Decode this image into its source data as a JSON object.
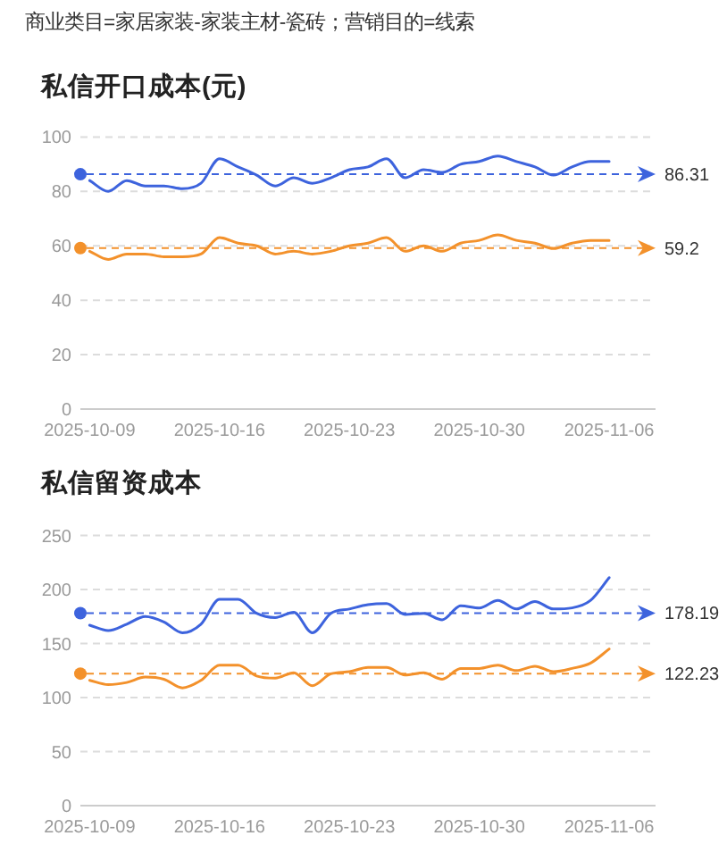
{
  "chart_data": [
    {
      "type": "line",
      "title": "私信开口成本(元)",
      "annotations": [
        "商业类目=家居家装-家装主材-瓷砖；营销目的=线索"
      ],
      "categories": [
        "2025-10-09",
        null,
        null,
        null,
        null,
        null,
        null,
        "2025-10-16",
        null,
        null,
        null,
        null,
        null,
        null,
        "2025-10-23",
        null,
        null,
        null,
        null,
        null,
        null,
        "2025-10-30",
        null,
        null,
        null,
        null,
        null,
        null,
        "2025-11-06",
        null,
        null
      ],
      "series": [
        {
          "color": "#3d63dd",
          "values": [
            84,
            80,
            84,
            82,
            82,
            81,
            83,
            92,
            89,
            86,
            82,
            85,
            83,
            85,
            88,
            89,
            92,
            85,
            88,
            87,
            90,
            91,
            93,
            91,
            89,
            86,
            89,
            91,
            91,
            null,
            null
          ]
        },
        {
          "color": "#f3912b",
          "values": [
            58,
            55,
            57,
            57,
            56,
            56,
            57,
            63,
            61,
            60,
            57,
            58,
            57,
            58,
            60,
            61,
            63,
            58,
            60,
            58,
            61,
            62,
            64,
            62,
            61,
            59,
            61,
            62,
            62,
            null,
            null
          ]
        }
      ],
      "ylim": [
        0,
        100
      ],
      "yticks": [
        0,
        20,
        40,
        60,
        80,
        100
      ],
      "grid": "y",
      "ref_lines": [
        {
          "axis": "y",
          "value": 86.31,
          "label": "86.31",
          "color": "#3d63dd",
          "line_style": "dashed"
        },
        {
          "axis": "y",
          "value": 59.2,
          "label": "59.2",
          "color": "#f3912b",
          "line_style": "dashed"
        }
      ]
    },
    {
      "type": "line",
      "title": "私信留资成本",
      "categories": [
        "2025-10-09",
        null,
        null,
        null,
        null,
        null,
        null,
        "2025-10-16",
        null,
        null,
        null,
        null,
        null,
        null,
        "2025-10-23",
        null,
        null,
        null,
        null,
        null,
        null,
        "2025-10-30",
        null,
        null,
        null,
        null,
        null,
        null,
        "2025-11-06",
        null,
        null
      ],
      "series": [
        {
          "color": "#3d63dd",
          "values": [
            167,
            162,
            168,
            175,
            170,
            160,
            168,
            191,
            191,
            178,
            174,
            179,
            160,
            178,
            182,
            186,
            187,
            177,
            178,
            172,
            185,
            183,
            190,
            182,
            189,
            182,
            183,
            190,
            211,
            null,
            null
          ]
        },
        {
          "color": "#f3912b",
          "values": [
            116,
            112,
            114,
            119,
            117,
            109,
            116,
            130,
            130,
            120,
            118,
            123,
            111,
            122,
            124,
            128,
            128,
            121,
            123,
            117,
            127,
            127,
            130,
            125,
            129,
            124,
            127,
            132,
            145,
            null,
            null
          ]
        }
      ],
      "ylim": [
        0,
        250
      ],
      "yticks": [
        0,
        50,
        100,
        150,
        200,
        250
      ],
      "grid": "y",
      "ref_lines": [
        {
          "axis": "y",
          "value": 178.19,
          "label": "178.19",
          "color": "#3d63dd",
          "line_style": "dashed"
        },
        {
          "axis": "y",
          "value": 122.23,
          "label": "122.23",
          "color": "#f3912b",
          "line_style": "dashed"
        }
      ]
    }
  ]
}
